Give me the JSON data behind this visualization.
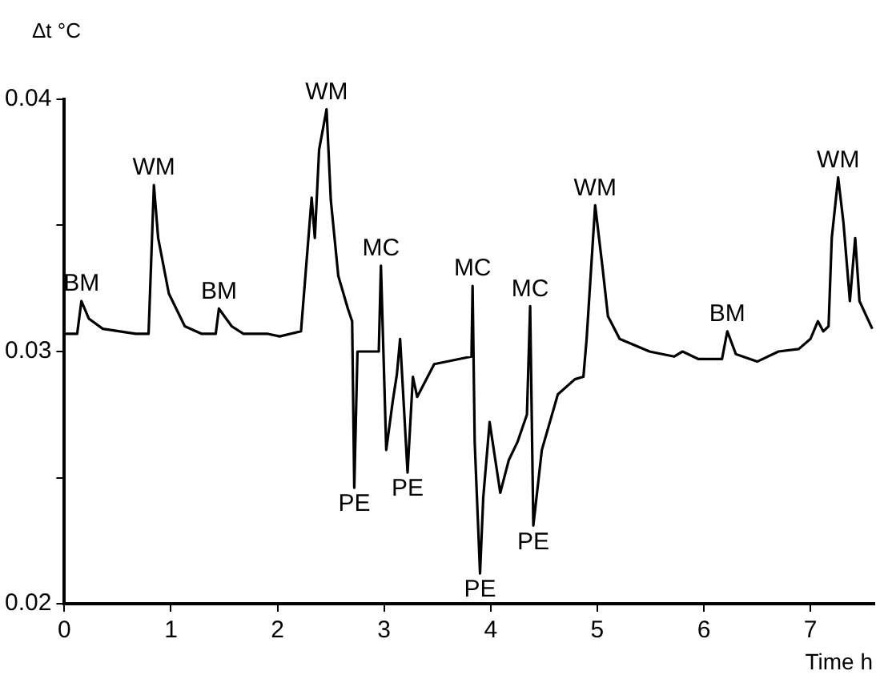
{
  "chart_data": {
    "type": "line",
    "xlabel": "Time h",
    "ylabel": "Δt °C",
    "x": [
      0,
      0.12,
      0.16,
      0.23,
      0.36,
      0.67,
      0.79,
      0.84,
      0.88,
      0.98,
      1.13,
      1.29,
      1.42,
      1.45,
      1.57,
      1.68,
      1.91,
      2.02,
      2.22,
      2.32,
      2.35,
      2.39,
      2.46,
      2.5,
      2.57,
      2.66,
      2.7,
      2.72,
      2.75,
      2.95,
      2.97,
      3.02,
      3.08,
      3.12,
      3.15,
      3.22,
      3.27,
      3.31,
      3.47,
      3.82,
      3.83,
      3.85,
      3.9,
      3.93,
      3.99,
      4.09,
      4.17,
      4.25,
      4.34,
      4.37,
      4.4,
      4.48,
      4.63,
      4.79,
      4.87,
      4.9,
      4.98,
      5.05,
      5.1,
      5.21,
      5.49,
      5.72,
      5.8,
      5.95,
      6.17,
      6.22,
      6.3,
      6.5,
      6.7,
      6.89,
      7.0,
      7.07,
      7.12,
      7.17,
      7.2,
      7.26,
      7.31,
      7.37,
      7.42,
      7.46,
      7.58
    ],
    "series": [
      {
        "color": "#000000",
        "values": [
          0.0307,
          0.0307,
          0.032,
          0.0313,
          0.0309,
          0.0307,
          0.0307,
          0.0366,
          0.0345,
          0.0323,
          0.031,
          0.0307,
          0.0307,
          0.0317,
          0.031,
          0.0307,
          0.0307,
          0.0306,
          0.0308,
          0.0361,
          0.0345,
          0.038,
          0.0396,
          0.036,
          0.033,
          0.0317,
          0.0312,
          0.0246,
          0.03,
          0.03,
          0.0334,
          0.0261,
          0.028,
          0.0291,
          0.0305,
          0.0252,
          0.029,
          0.0282,
          0.0295,
          0.0298,
          0.0326,
          0.0264,
          0.0212,
          0.0242,
          0.0272,
          0.0244,
          0.0257,
          0.0264,
          0.0275,
          0.0318,
          0.0231,
          0.0261,
          0.0283,
          0.0289,
          0.029,
          0.0305,
          0.0358,
          0.0333,
          0.0314,
          0.0305,
          0.03,
          0.0298,
          0.03,
          0.0297,
          0.0297,
          0.0308,
          0.0299,
          0.0296,
          0.03,
          0.0301,
          0.0305,
          0.0312,
          0.0308,
          0.031,
          0.0345,
          0.0369,
          0.0351,
          0.032,
          0.0345,
          0.032,
          0.0309
        ]
      }
    ],
    "xlim": [
      0,
      7.6
    ],
    "ylim": [
      0.02,
      0.04
    ],
    "xticks": [
      0,
      1,
      2,
      3,
      4,
      5,
      6,
      7
    ],
    "yticks": [
      0.02,
      {
        "value": 0.025,
        "label": null
      },
      0.03,
      {
        "value": 0.035,
        "label": null
      },
      0.04
    ],
    "annotations": [
      {
        "text": "BM",
        "x": 0.16,
        "y": 0.032
      },
      {
        "text": "WM",
        "x": 0.84,
        "y": 0.0366
      },
      {
        "text": "BM",
        "x": 1.45,
        "y": 0.0317
      },
      {
        "text": "WM",
        "x": 2.46,
        "y": 0.0396
      },
      {
        "text": "PE",
        "x": 2.72,
        "y": 0.0246
      },
      {
        "text": "MC",
        "x": 2.97,
        "y": 0.0334
      },
      {
        "text": "PE",
        "x": 3.22,
        "y": 0.0252
      },
      {
        "text": "MC",
        "x": 3.83,
        "y": 0.0326
      },
      {
        "text": "PE",
        "x": 3.9,
        "y": 0.0212
      },
      {
        "text": "MC",
        "x": 4.37,
        "y": 0.0318
      },
      {
        "text": "PE",
        "x": 4.4,
        "y": 0.0231
      },
      {
        "text": "WM",
        "x": 4.98,
        "y": 0.0358
      },
      {
        "text": "BM",
        "x": 6.22,
        "y": 0.0308
      },
      {
        "text": "WM",
        "x": 7.26,
        "y": 0.0369
      }
    ],
    "grid": false,
    "legend": false,
    "marker": "none",
    "line_style": "solid"
  }
}
